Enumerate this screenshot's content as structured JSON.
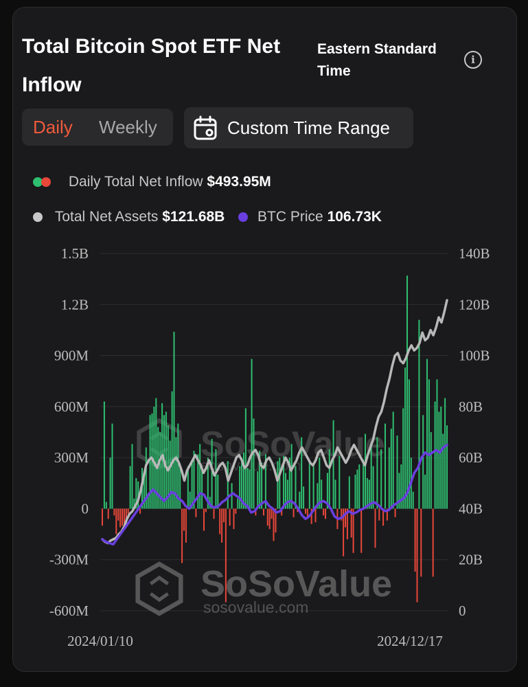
{
  "header": {
    "title": "Total Bitcoin Spot ETF Net Inflow",
    "timezone": "Eastern Standard Time",
    "info_icon": "info-icon"
  },
  "controls": {
    "tabs": [
      {
        "label": "Daily",
        "active": true
      },
      {
        "label": "Weekly",
        "active": false
      }
    ],
    "custom_range_label": "Custom Time Range",
    "calendar_icon": "calendar-icon"
  },
  "legend": {
    "daily_inflow_label": "Daily Total Net Inflow",
    "daily_inflow_value": "$493.95M",
    "net_assets_label": "Total Net Assets",
    "net_assets_value": "$121.68B",
    "btc_price_label": "BTC Price",
    "btc_price_value": "106.73K"
  },
  "colors": {
    "inflow_positive": "#2fbf71",
    "inflow_negative": "#e8473a",
    "net_assets_line": "#b8b8b8",
    "btc_price_line": "#6a3fe0",
    "accent": "#f05a3c"
  },
  "watermark": {
    "brand": "SoSoValue",
    "url": "sosovalue.com"
  },
  "chart_data": {
    "type": "bar",
    "x_start": "2024/01/10",
    "x_end": "2024/12/17",
    "x_tick_labels": [
      "2024/01/10",
      "2024/12/17"
    ],
    "y_left": {
      "ticks": [
        "1.5B",
        "1.2B",
        "900M",
        "600M",
        "300M",
        "0",
        "-300M",
        "-600M"
      ],
      "range": [
        -600,
        1500
      ],
      "unit": "M USD"
    },
    "y_right": {
      "ticks": [
        "140B",
        "120B",
        "100B",
        "80B",
        "60B",
        "40B",
        "20B",
        "0"
      ],
      "range": [
        0,
        140
      ],
      "unit": "B USD"
    },
    "series": [
      {
        "name": "Daily Total Net Inflow",
        "kind": "bar",
        "values": [
          -100,
          630,
          40,
          -60,
          300,
          500,
          -40,
          -150,
          -70,
          -110,
          -100,
          -90,
          -60,
          -30,
          250,
          380,
          60,
          180,
          160,
          -30,
          240,
          200,
          360,
          90,
          550,
          560,
          600,
          650,
          480,
          450,
          620,
          550,
          570,
          490,
          400,
          690,
          1040,
          420,
          500,
          240,
          -320,
          -130,
          -200,
          250,
          100,
          280,
          340,
          -50,
          320,
          380,
          230,
          -130,
          -20,
          300,
          70,
          410,
          -60,
          350,
          200,
          -150,
          -200,
          -80,
          -550,
          280,
          -100,
          150,
          -120,
          -30,
          60,
          250,
          300,
          330,
          590,
          240,
          230,
          880,
          530,
          -40,
          220,
          340,
          270,
          -40,
          320,
          -100,
          -120,
          -60,
          -190,
          -140,
          280,
          300,
          -40,
          310,
          210,
          170,
          300,
          380,
          -50,
          250,
          -20,
          100,
          420,
          130,
          -30,
          -60,
          280,
          -90,
          250,
          -80,
          150,
          300,
          170,
          -40,
          -60,
          210,
          350,
          -20,
          520,
          170,
          -120,
          310,
          -70,
          -280,
          -110,
          -180,
          190,
          -170,
          -260,
          200,
          230,
          260,
          -260,
          290,
          440,
          180,
          170,
          390,
          250,
          -230,
          420,
          -70,
          350,
          -100,
          500,
          -70,
          360,
          470,
          570,
          -50,
          430,
          210,
          260,
          590,
          830,
          1370,
          760,
          300,
          100,
          -370,
          -550,
          1110,
          -400,
          550,
          200,
          880,
          760,
          450,
          -400,
          630,
          760,
          570,
          600,
          440,
          650,
          490
        ],
        "color": "green for positive, red for negative"
      },
      {
        "name": "Total Net Assets",
        "kind": "line",
        "axis": "right",
        "values": [
          28,
          27,
          26.5,
          27.5,
          28,
          28.5,
          30,
          31,
          33,
          36,
          38,
          39,
          41,
          43,
          47,
          52,
          57,
          59,
          60,
          58,
          56,
          59,
          61,
          57,
          55,
          57,
          59,
          60,
          58,
          55,
          51,
          55,
          57,
          59,
          61,
          59,
          57,
          54,
          56,
          59,
          56,
          53,
          55,
          57,
          58,
          56,
          51,
          54,
          57,
          60,
          61,
          59,
          56,
          57,
          60,
          62,
          63,
          61,
          57,
          56,
          59,
          60,
          58,
          55,
          51,
          54,
          57,
          60,
          58,
          55,
          57,
          59,
          62,
          64,
          62,
          60,
          58,
          57,
          59,
          62,
          63,
          60,
          57,
          56,
          59,
          61,
          64,
          62,
          60,
          58,
          60,
          63,
          65,
          63,
          61,
          59,
          57,
          61,
          64,
          67,
          72,
          76,
          78,
          82,
          87,
          91,
          96,
          100,
          101,
          98,
          97,
          99,
          102,
          104,
          102,
          103,
          105,
          109,
          106,
          107,
          110,
          108,
          111,
          115,
          113,
          117,
          121.68
        ]
      },
      {
        "name": "BTC Price",
        "kind": "line",
        "axis": "right",
        "values": [
          28,
          27,
          26.5,
          26,
          28,
          30,
          32,
          34,
          36,
          38,
          40,
          42,
          44,
          46,
          47.5,
          46,
          44.5,
          43,
          44.5,
          46.5,
          46,
          44,
          43,
          41,
          40,
          42,
          44,
          46,
          45.5,
          43,
          41,
          40.5,
          41,
          42.5,
          43.5,
          45,
          46,
          45,
          44,
          42,
          41,
          38.5,
          39,
          41,
          42,
          43,
          41,
          40,
          38.5,
          39,
          41,
          42.5,
          43,
          42,
          40,
          37.5,
          36,
          37,
          39,
          41,
          42.5,
          43,
          42,
          40,
          37,
          36,
          36.5,
          38,
          39,
          38,
          38.5,
          39.5,
          40,
          41,
          42,
          42.5,
          41.5,
          40,
          39,
          39.5,
          41,
          42,
          43,
          44,
          46,
          50,
          54,
          56,
          60,
          62,
          61,
          62,
          63,
          62,
          64,
          65
        ]
      }
    ],
    "grid": true,
    "legend_placement": "top"
  }
}
